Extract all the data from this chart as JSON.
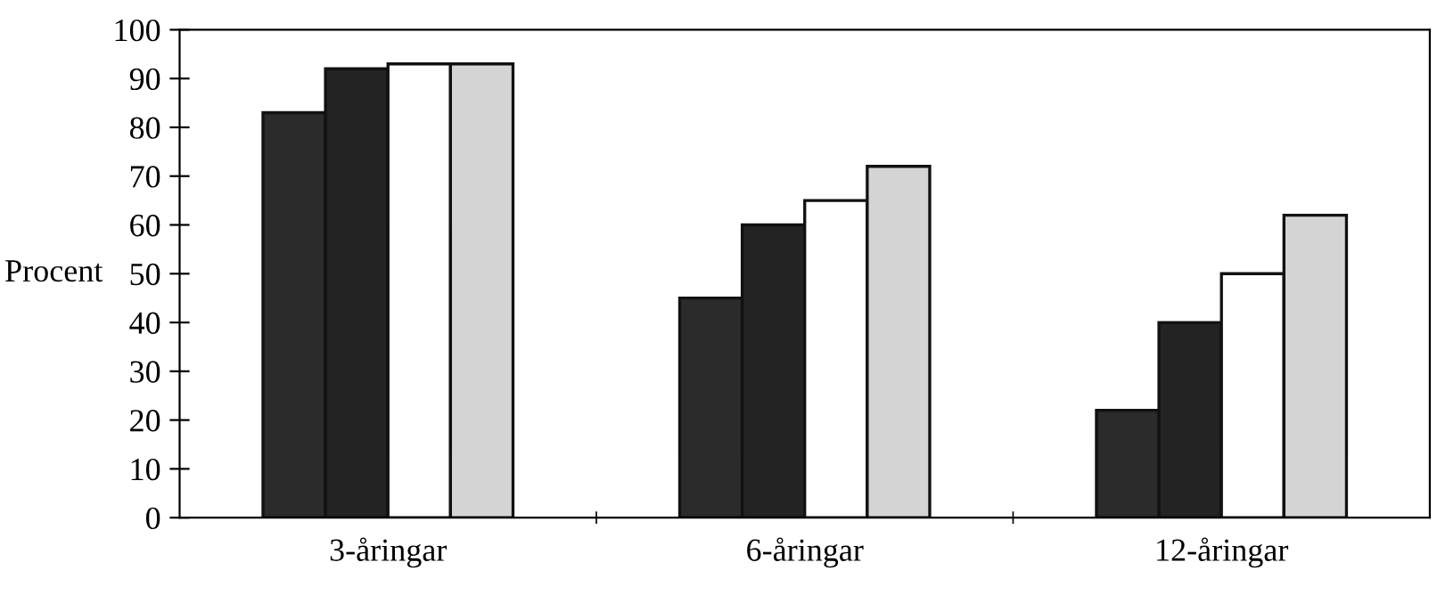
{
  "chart_data": {
    "type": "bar",
    "ylabel": "Procent",
    "categories": [
      "3-åringar",
      "6-åringar",
      "12-åringar"
    ],
    "series": [
      {
        "color": "#2b2b2b",
        "values": [
          83,
          45,
          22
        ]
      },
      {
        "color": "#232323",
        "values": [
          92,
          60,
          40
        ]
      },
      {
        "color": "#ffffff",
        "values": [
          93,
          65,
          50
        ]
      },
      {
        "color": "#d4d4d4",
        "values": [
          93,
          72,
          62
        ]
      }
    ],
    "ylim": [
      0,
      100
    ],
    "yticks": [
      0,
      10,
      20,
      30,
      40,
      50,
      60,
      70,
      80,
      90,
      100
    ],
    "grid": false,
    "legend": false
  }
}
